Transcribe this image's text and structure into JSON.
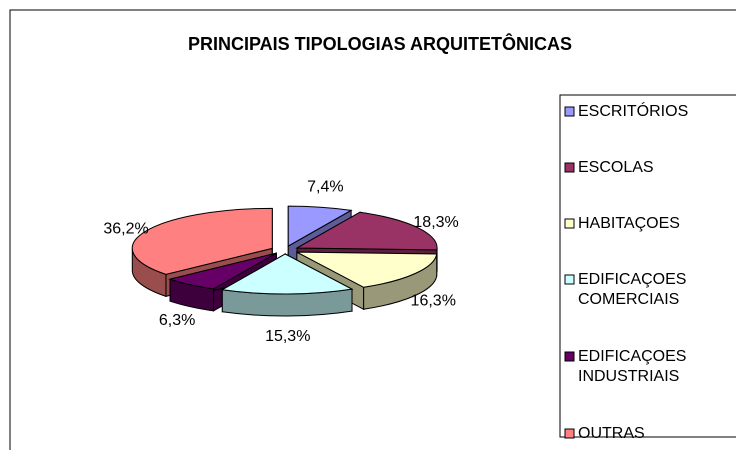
{
  "chart_data": {
    "type": "pie3d",
    "title": "PRINCIPAIS TIPOLOGIAS ARQUITETÔNICAS",
    "categories": [
      "ESCRITÓRIOS",
      "ESCOLAS",
      "HABITAÇOES",
      "EDIFICAÇOES COMERCIAIS",
      "EDIFICAÇOES INDUSTRIAIS",
      "OUTRAS"
    ],
    "values": [
      7.4,
      18.3,
      16.3,
      15.3,
      6.3,
      36.2
    ],
    "value_labels": [
      "7,4%",
      "18,3%",
      "16,3%",
      "15,3%",
      "6,3%",
      "36,2%"
    ],
    "colors": [
      "#9999ff",
      "#993366",
      "#ffffcc",
      "#ccffff",
      "#660066",
      "#ff8080"
    ],
    "legend": "right"
  }
}
